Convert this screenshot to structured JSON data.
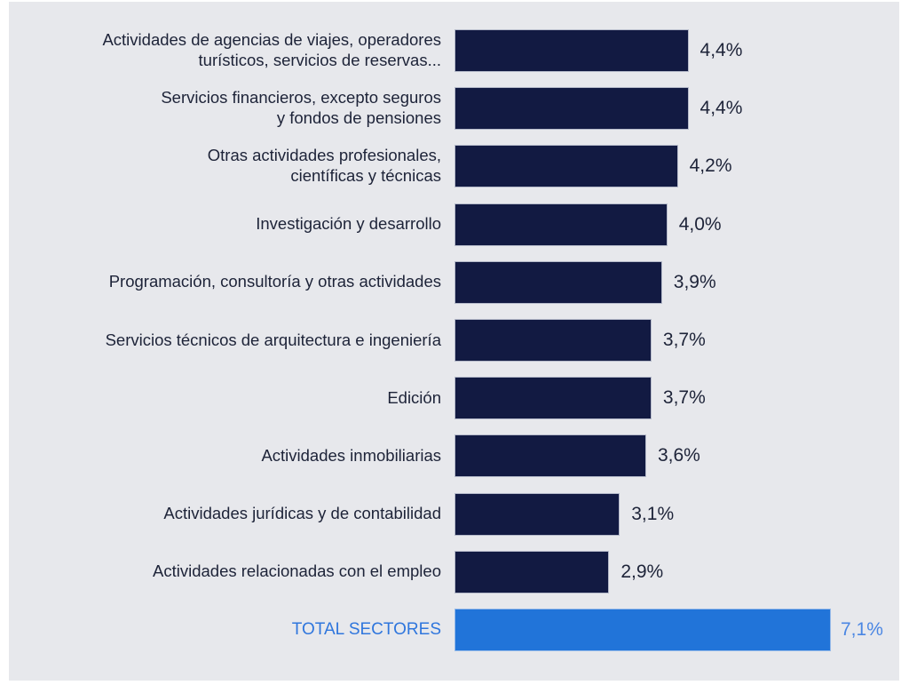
{
  "chart_data": {
    "type": "bar",
    "orientation": "horizontal",
    "title": "",
    "xlabel": "",
    "ylabel": "",
    "xlim": [
      0,
      7.1
    ],
    "grid": false,
    "legend": "none",
    "categories": [
      [
        "Actividades de agencias de viajes, operadores",
        "turísticos, servicios de reservas..."
      ],
      [
        "Servicios financieros, excepto seguros",
        "y fondos de pensiones"
      ],
      [
        "Otras actividades profesionales,",
        "científicas y técnicas"
      ],
      [
        "Investigación y desarrollo"
      ],
      [
        "Programación, consultoría y otras actividades"
      ],
      [
        "Servicios técnicos de arquitectura e ingeniería"
      ],
      [
        "Edición"
      ],
      [
        "Actividades inmobiliarias"
      ],
      [
        "Actividades jurídicas y de contabilidad"
      ],
      [
        "Actividades relacionadas con el empleo"
      ],
      [
        "TOTAL SECTORES"
      ]
    ],
    "values": [
      4.4,
      4.4,
      4.2,
      4.0,
      3.9,
      3.7,
      3.7,
      3.6,
      3.1,
      2.9,
      7.1
    ],
    "value_labels": [
      "4,4%",
      "4,4%",
      "4,2%",
      "4,0%",
      "3,9%",
      "3,7%",
      "3,7%",
      "3,6%",
      "3,1%",
      "2,9%",
      "7,1%"
    ],
    "highlight": [
      false,
      false,
      false,
      false,
      false,
      false,
      false,
      false,
      false,
      false,
      true
    ],
    "colors": {
      "bar": "#121a42",
      "highlight_bar": "#2174d9",
      "label": "#1d2338",
      "highlight_label": "#2f76dd",
      "background": "#e7e8ec"
    }
  }
}
